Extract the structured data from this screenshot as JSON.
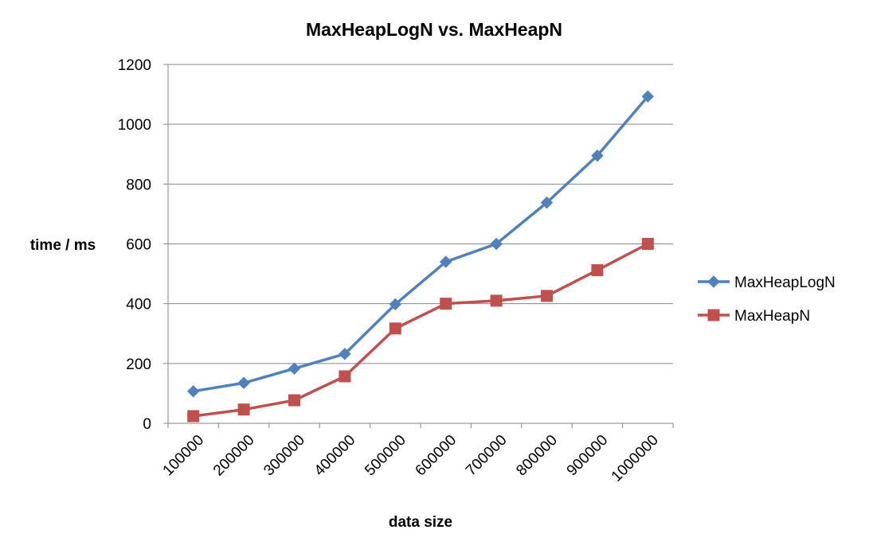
{
  "chart_data": {
    "type": "line",
    "title": "MaxHeapLogN vs. MaxHeapN",
    "xlabel": "data size",
    "ylabel": "time / ms",
    "categories": [
      "100000",
      "200000",
      "300000",
      "400000",
      "500000",
      "600000",
      "700000",
      "800000",
      "900000",
      "1000000"
    ],
    "ylim": [
      0,
      1200
    ],
    "yticks": [
      0,
      200,
      400,
      600,
      800,
      1000,
      1200
    ],
    "grid": true,
    "legend_position": "right",
    "series": [
      {
        "name": "MaxHeapLogN",
        "color": "#4F81BD",
        "marker": "diamond",
        "values": [
          107,
          135,
          183,
          232,
          398,
          540,
          600,
          738,
          895,
          1093
        ]
      },
      {
        "name": "MaxHeapN",
        "color": "#C0504D",
        "marker": "square",
        "values": [
          24,
          46,
          77,
          157,
          317,
          400,
          410,
          426,
          512,
          600
        ]
      }
    ]
  }
}
